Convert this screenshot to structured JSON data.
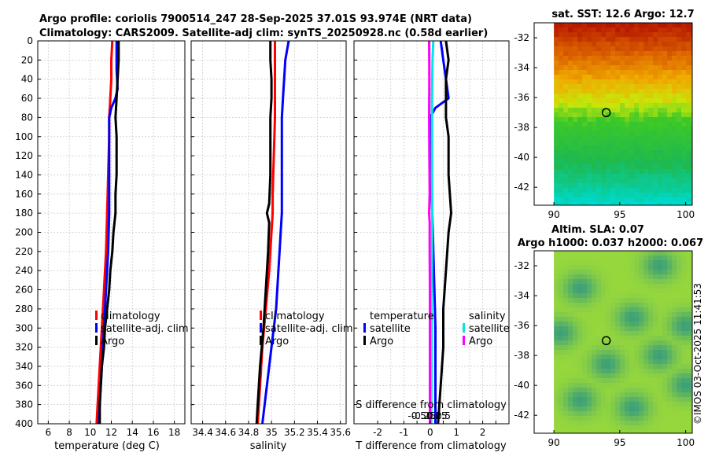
{
  "header": {
    "title_line1": "Argo profile: coriolis 7900514_247 28-Sep-2025 37.01S 93.974E (NRT data)",
    "title_line2": "Climatology: CARS2009. Satellite-adj clim: synTS_20250928.nc (0.58d earlier)"
  },
  "colors": {
    "climatology": "#ff0000",
    "satellite": "#0000ff",
    "argo": "#000000",
    "sat_salinity": "#00e5e5",
    "argo_salinity": "#ff00ff"
  },
  "chart_data": [
    {
      "type": "line",
      "name": "temperature-profile",
      "xlabel": "temperature (deg C)",
      "ylabel": "",
      "xlim": [
        5,
        19
      ],
      "ylim": [
        400,
        0
      ],
      "xticks": [
        "6",
        "8",
        "10",
        "12",
        "14",
        "16",
        "18"
      ],
      "xtick_values": [
        6,
        8,
        10,
        12,
        14,
        16,
        18
      ],
      "yticks": [
        "0",
        "20",
        "40",
        "60",
        "80",
        "100",
        "120",
        "140",
        "160",
        "180",
        "200",
        "220",
        "240",
        "260",
        "280",
        "300",
        "320",
        "340",
        "360",
        "380",
        "400"
      ],
      "ytick_values": [
        0,
        20,
        40,
        60,
        80,
        100,
        120,
        140,
        160,
        180,
        200,
        220,
        240,
        260,
        280,
        300,
        320,
        340,
        360,
        380,
        400
      ],
      "legend": [
        "climatology",
        "satellite-adj. clim",
        "Argo"
      ],
      "series": [
        {
          "name": "climatology",
          "color": "#ff0000",
          "depth": [
            0,
            20,
            40,
            60,
            80,
            100,
            140,
            180,
            220,
            260,
            300,
            340,
            380,
            400
          ],
          "values": [
            12.1,
            12.0,
            12.0,
            11.9,
            11.8,
            11.8,
            11.7,
            11.6,
            11.5,
            11.3,
            11.1,
            10.9,
            10.7,
            10.6
          ]
        },
        {
          "name": "satellite-adj. clim",
          "color": "#0000ff",
          "depth": [
            0,
            10,
            30,
            50,
            60,
            70,
            80,
            100,
            140,
            180,
            220,
            260,
            300,
            340,
            380,
            400
          ],
          "values": [
            12.5,
            12.5,
            12.5,
            12.6,
            12.4,
            12.0,
            11.8,
            11.8,
            11.8,
            11.8,
            11.7,
            11.5,
            11.3,
            11.1,
            10.9,
            10.8
          ]
        },
        {
          "name": "Argo",
          "color": "#000000",
          "depth": [
            0,
            20,
            40,
            60,
            80,
            100,
            120,
            140,
            160,
            180,
            200,
            220,
            240,
            260,
            280,
            300,
            320,
            340,
            360,
            380,
            400
          ],
          "values": [
            12.7,
            12.7,
            12.6,
            12.5,
            12.4,
            12.5,
            12.5,
            12.5,
            12.4,
            12.4,
            12.2,
            12.1,
            11.9,
            11.8,
            11.6,
            11.4,
            11.3,
            11.1,
            11.0,
            10.9,
            10.9
          ]
        }
      ]
    },
    {
      "type": "line",
      "name": "salinity-profile",
      "xlabel": "salinity",
      "xlim": [
        34.3,
        35.65
      ],
      "ylim": [
        400,
        0
      ],
      "xticks": [
        "34.4",
        "34.6",
        "34.8",
        "35",
        "35.2",
        "35.4",
        "35.6"
      ],
      "xtick_values": [
        34.4,
        34.6,
        34.8,
        35.0,
        35.2,
        35.4,
        35.6
      ],
      "legend": [
        "climatology",
        "satellite-adj. clim",
        "Argo"
      ],
      "series": [
        {
          "name": "climatology",
          "color": "#ff0000",
          "depth": [
            0,
            40,
            80,
            120,
            160,
            180,
            200,
            240,
            280,
            320,
            360,
            400
          ],
          "values": [
            35.03,
            35.03,
            35.03,
            35.02,
            35.01,
            35.01,
            35.0,
            34.98,
            34.95,
            34.92,
            34.9,
            34.88
          ]
        },
        {
          "name": "satellite-adj. clim",
          "color": "#0000ff",
          "depth": [
            0,
            20,
            40,
            60,
            80,
            100,
            140,
            180,
            200,
            220,
            240,
            280,
            320,
            360,
            400
          ],
          "values": [
            35.15,
            35.12,
            35.11,
            35.1,
            35.09,
            35.09,
            35.09,
            35.09,
            35.08,
            35.07,
            35.06,
            35.04,
            35.0,
            34.96,
            34.92
          ]
        },
        {
          "name": "Argo",
          "color": "#000000",
          "depth": [
            0,
            20,
            40,
            60,
            80,
            100,
            140,
            170,
            180,
            190,
            220,
            260,
            300,
            340,
            380,
            400
          ],
          "values": [
            34.99,
            34.99,
            35.0,
            35.0,
            34.99,
            34.99,
            34.99,
            34.98,
            34.96,
            34.98,
            34.97,
            34.95,
            34.93,
            34.9,
            34.88,
            34.87
          ]
        }
      ]
    },
    {
      "type": "line",
      "name": "difference-profile",
      "xlabel": "T difference from climatology",
      "xlabel2": "S difference from climatology",
      "xlim": [
        -2.9,
        3.0
      ],
      "ylim": [
        400,
        0
      ],
      "xticks": [
        "-2",
        "-1.5",
        "-1",
        "-0.5",
        "0",
        "0.5",
        "1",
        "1.5",
        "2",
        "2.5"
      ],
      "xtick_values": [
        -2,
        -1.5,
        -1,
        -0.5,
        0,
        0.5,
        1,
        1.5,
        2,
        2.5
      ],
      "xticks_visible": [
        "-2",
        "-1",
        "0",
        "1",
        "2"
      ],
      "xticks2": [
        "-0.5",
        "-0.25",
        "0",
        "0.25",
        "0.5"
      ],
      "legend_t": {
        "title": "temperature",
        "items": [
          "satellite",
          "Argo"
        ]
      },
      "legend_s": {
        "title": "salinity",
        "items": [
          "satellite",
          "Argo"
        ]
      },
      "series": [
        {
          "name": "T satellite",
          "color": "#0000ff",
          "depth": [
            0,
            20,
            40,
            60,
            70,
            80,
            100,
            200,
            300,
            400
          ],
          "values": [
            0.4,
            0.5,
            0.6,
            0.7,
            0.2,
            0.0,
            0.0,
            0.1,
            0.2,
            0.2
          ]
        },
        {
          "name": "T Argo",
          "color": "#000000",
          "depth": [
            0,
            20,
            40,
            60,
            80,
            100,
            140,
            180,
            200,
            240,
            280,
            320,
            360,
            400
          ],
          "values": [
            0.6,
            0.7,
            0.6,
            0.6,
            0.6,
            0.7,
            0.7,
            0.8,
            0.7,
            0.6,
            0.5,
            0.5,
            0.4,
            0.3
          ]
        },
        {
          "name": "S satellite",
          "color": "#00e5e5",
          "depth": [
            0,
            20,
            40,
            60,
            100,
            140,
            180,
            220,
            260,
            300,
            360,
            400
          ],
          "values": [
            0.12,
            0.09,
            0.08,
            0.07,
            0.07,
            0.07,
            0.08,
            0.07,
            0.06,
            0.06,
            0.05,
            0.04
          ]
        },
        {
          "name": "S Argo",
          "color": "#ff00ff",
          "depth": [
            0,
            40,
            80,
            120,
            160,
            180,
            190,
            220,
            260,
            300,
            360,
            400
          ],
          "values": [
            -0.04,
            -0.03,
            -0.04,
            -0.03,
            -0.02,
            -0.04,
            -0.02,
            -0.02,
            -0.01,
            -0.01,
            -0.01,
            -0.01
          ]
        }
      ]
    }
  ],
  "sst_map": {
    "title": "sat. SST: 12.6 Argo: 12.7",
    "yticks": [
      "-32",
      "-34",
      "-36",
      "-38",
      "-40",
      "-42"
    ],
    "ytick_values": [
      -32,
      -34,
      -36,
      -38,
      -40,
      -42
    ],
    "xticks": [
      "90",
      "95",
      "100"
    ],
    "xtick_values": [
      90,
      95,
      100
    ],
    "lon_range": [
      88.5,
      100.5
    ],
    "lat_range": [
      -43.2,
      -31
    ],
    "data_lon_start": 90,
    "marker": {
      "lon": 93.97,
      "lat": -37.01
    }
  },
  "sla_map": {
    "title_line1": "Altim. SLA: 0.07",
    "title_line2": "Argo h1000: 0.037 h2000: 0.067",
    "yticks": [
      "-32",
      "-34",
      "-36",
      "-38",
      "-40",
      "-42"
    ],
    "ytick_values": [
      -32,
      -34,
      -36,
      -38,
      -40,
      -42
    ],
    "xticks": [
      "90",
      "95",
      "100"
    ],
    "xtick_values": [
      90,
      95,
      100
    ],
    "lon_range": [
      88.5,
      100.5
    ],
    "lat_range": [
      -43.2,
      -31
    ],
    "data_lon_start": 90,
    "marker": {
      "lon": 93.97,
      "lat": -37.01
    }
  },
  "footer": {
    "copyright": "©IMOS 03-Oct-2025 11:41:53"
  }
}
